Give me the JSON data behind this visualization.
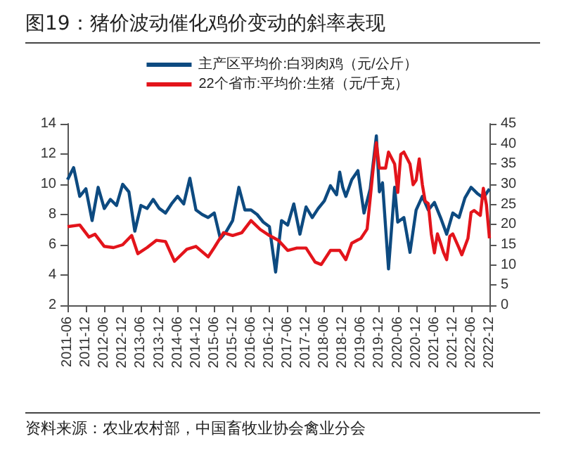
{
  "chart_data": {
    "type": "line",
    "title": "图19：猪价波动催化鸡价变动的斜率表现",
    "legend": "top",
    "grid": false,
    "marker": "none",
    "line_style": "solid",
    "xlim": [
      "2011-06",
      "2022-12"
    ],
    "xticks": [
      "2011-06",
      "2011-12",
      "2012-06",
      "2012-12",
      "2013-06",
      "2013-12",
      "2014-06",
      "2014-12",
      "2015-06",
      "2015-12",
      "2016-06",
      "2016-12",
      "2017-06",
      "2017-12",
      "2018-06",
      "2018-12",
      "2019-06",
      "2019-12",
      "2020-06",
      "2020-12",
      "2021-06",
      "2021-12",
      "2022-06",
      "2022-12"
    ],
    "ylim": [
      2,
      14
    ],
    "yticks": [
      2,
      4,
      6,
      8,
      10,
      12,
      14
    ],
    "y2lim": [
      0,
      45
    ],
    "y2ticks": [
      0,
      5,
      10,
      15,
      20,
      25,
      30,
      35,
      40,
      45
    ],
    "series": [
      {
        "name": "主产区平均价:白羽肉鸡（元/公斤）",
        "color": "#0d4a80",
        "x": [
          "2011-06",
          "2011-08",
          "2011-10",
          "2011-12",
          "2012-02",
          "2012-04",
          "2012-06",
          "2012-08",
          "2012-10",
          "2012-12",
          "2013-02",
          "2013-04",
          "2013-06",
          "2013-08",
          "2013-10",
          "2013-12",
          "2014-02",
          "2014-04",
          "2014-06",
          "2014-08",
          "2014-10",
          "2014-12",
          "2015-02",
          "2015-04",
          "2015-06",
          "2015-08",
          "2015-10",
          "2015-12",
          "2016-02",
          "2016-04",
          "2016-06",
          "2016-08",
          "2016-10",
          "2016-12",
          "2017-02",
          "2017-04",
          "2017-06",
          "2017-08",
          "2017-10",
          "2017-12",
          "2018-02",
          "2018-04",
          "2018-06",
          "2018-08",
          "2018-10",
          "2018-11",
          "2018-12",
          "2019-01",
          "2019-03",
          "2019-05",
          "2019-07",
          "2019-09",
          "2019-11",
          "2019-12",
          "2020-01",
          "2020-03",
          "2020-05",
          "2020-06",
          "2020-08",
          "2020-10",
          "2020-12",
          "2021-02",
          "2021-04",
          "2021-06",
          "2021-08",
          "2021-10",
          "2021-12",
          "2022-02",
          "2022-04",
          "2022-06",
          "2022-08",
          "2022-10",
          "2022-12"
        ],
        "values": [
          10.3,
          11.1,
          9.2,
          9.7,
          7.6,
          9.8,
          8.4,
          9.0,
          8.6,
          10.0,
          9.5,
          6.9,
          8.6,
          8.4,
          9.0,
          8.4,
          8.1,
          8.7,
          9.2,
          8.7,
          10.4,
          8.3,
          8.0,
          7.8,
          8.1,
          6.4,
          6.9,
          7.6,
          9.8,
          8.3,
          8.3,
          8.0,
          7.5,
          7.2,
          4.2,
          7.6,
          7.3,
          8.7,
          6.7,
          8.5,
          7.8,
          8.4,
          8.9,
          9.9,
          9.3,
          10.8,
          9.8,
          9.2,
          10.3,
          10.9,
          8.1,
          9.7,
          13.2,
          9.5,
          10.1,
          4.4,
          9.8,
          7.5,
          7.8,
          5.5,
          8.3,
          9.2,
          8.3,
          8.8,
          7.8,
          6.7,
          8.1,
          7.8,
          9.1,
          9.8,
          9.4,
          9.1,
          9.7
        ]
      },
      {
        "name": "22个省市:平均价:生猪（元/千克）",
        "color": "#e3141b",
        "axis": "y2",
        "x": [
          "2011-06",
          "2011-10",
          "2012-01",
          "2012-03",
          "2012-06",
          "2012-09",
          "2012-12",
          "2013-03",
          "2013-05",
          "2013-08",
          "2013-11",
          "2014-02",
          "2014-05",
          "2014-09",
          "2014-12",
          "2015-04",
          "2015-06",
          "2015-09",
          "2015-12",
          "2016-03",
          "2016-06",
          "2016-09",
          "2016-12",
          "2017-03",
          "2017-06",
          "2017-09",
          "2017-12",
          "2018-03",
          "2018-05",
          "2018-08",
          "2018-11",
          "2019-01",
          "2019-03",
          "2019-06",
          "2019-08",
          "2019-10",
          "2019-11",
          "2019-12",
          "2020-02",
          "2020-03",
          "2020-05",
          "2020-06",
          "2020-07",
          "2020-08",
          "2020-10",
          "2020-11",
          "2020-12",
          "2021-01",
          "2021-02",
          "2021-03",
          "2021-04",
          "2021-05",
          "2021-06",
          "2021-07",
          "2021-08",
          "2021-09",
          "2021-10",
          "2021-11",
          "2021-12",
          "2022-02",
          "2022-03",
          "2022-05",
          "2022-06",
          "2022-07",
          "2022-09",
          "2022-10",
          "2022-11",
          "2022-12"
        ],
        "values": [
          19.5,
          19.9,
          16.9,
          17.6,
          14.6,
          14.3,
          15,
          17.3,
          12.8,
          14.3,
          16.1,
          15.8,
          10.9,
          13.9,
          14.6,
          12,
          14.3,
          18,
          17.3,
          18,
          21,
          18.8,
          17.3,
          16.1,
          13.6,
          14.2,
          14.2,
          10.7,
          10.1,
          13.6,
          13.6,
          11.3,
          15.4,
          16.6,
          18.9,
          34,
          40.3,
          34,
          34,
          38,
          35,
          28,
          37.4,
          38,
          35,
          29.9,
          31,
          36.3,
          29.9,
          25.8,
          25.2,
          17.7,
          13,
          17.7,
          15.4,
          13,
          11.3,
          17.1,
          17.7,
          14.2,
          12.5,
          16.6,
          23,
          23.5,
          22.3,
          29,
          24.9,
          16.6
        ]
      }
    ],
    "annotations": [
      "资料来源：农业农村部，中国畜牧业协会禽业分会"
    ]
  }
}
